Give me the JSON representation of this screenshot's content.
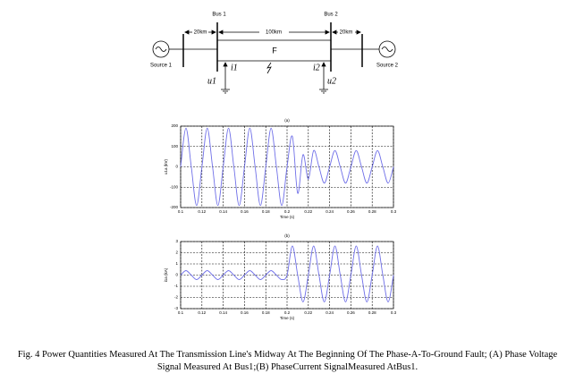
{
  "diagram": {
    "bus1": "Bus 1",
    "bus2": "Bus 2",
    "left_distance": "20km",
    "line_distance": "100km",
    "right_distance": "20km",
    "fault": "F",
    "source1": "Source 1",
    "source2": "Source 2",
    "i1": "i1",
    "i2": "i2",
    "u1": "u1",
    "u2": "u2"
  },
  "chart_data": [
    {
      "type": "line",
      "title": "(a)",
      "x_label": "Time (s)",
      "y_label": "u1a (kV)",
      "x": [
        0.1,
        0.105,
        0.11,
        0.115,
        0.12,
        0.125,
        0.13,
        0.135,
        0.14,
        0.145,
        0.15,
        0.155,
        0.16,
        0.165,
        0.17,
        0.175,
        0.18,
        0.185,
        0.19,
        0.195,
        0.2,
        0.205,
        0.21,
        0.215,
        0.22,
        0.225,
        0.23,
        0.235,
        0.24,
        0.245,
        0.25,
        0.255,
        0.26,
        0.265,
        0.27,
        0.275,
        0.28,
        0.285,
        0.29,
        0.295,
        0.3
      ],
      "series": [
        {
          "color": "#6f6fe8",
          "values": [
            0,
            190,
            0,
            -190,
            0,
            190,
            0,
            -190,
            0,
            190,
            0,
            -190,
            0,
            190,
            0,
            -190,
            0,
            190,
            0,
            -190,
            0,
            150,
            -130,
            60,
            -60,
            80,
            0,
            -80,
            0,
            80,
            0,
            -80,
            0,
            80,
            0,
            -80,
            0,
            80,
            0,
            -80,
            0
          ]
        }
      ],
      "xlim": [
        0.1,
        0.3
      ],
      "xticks": [
        0.1,
        0.12,
        0.14,
        0.16,
        0.18,
        0.2,
        0.22,
        0.24,
        0.26,
        0.28,
        0.3
      ],
      "ylim": [
        -200,
        200
      ],
      "yticks": [
        -200,
        -100,
        0,
        100,
        200
      ],
      "grid": true
    },
    {
      "type": "line",
      "title": "(b)",
      "x_label": "Time (s)",
      "y_label": "i1a (kA)",
      "x": [
        0.1,
        0.105,
        0.11,
        0.115,
        0.12,
        0.125,
        0.13,
        0.135,
        0.14,
        0.145,
        0.15,
        0.155,
        0.16,
        0.165,
        0.17,
        0.175,
        0.18,
        0.185,
        0.19,
        0.195,
        0.2,
        0.205,
        0.21,
        0.215,
        0.22,
        0.225,
        0.23,
        0.235,
        0.24,
        0.245,
        0.25,
        0.255,
        0.26,
        0.265,
        0.27,
        0.275,
        0.28,
        0.285,
        0.29,
        0.295,
        0.3
      ],
      "series": [
        {
          "color": "#6f6fe8",
          "values": [
            0,
            0.4,
            0,
            -0.4,
            0,
            0.4,
            0,
            -0.4,
            0,
            0.4,
            0,
            -0.4,
            0,
            0.4,
            0,
            -0.4,
            0,
            0.4,
            0,
            -0.4,
            0,
            2.6,
            0,
            -2.4,
            0,
            2.6,
            0,
            -2.4,
            0,
            2.6,
            0,
            -2.4,
            0,
            2.6,
            0,
            -2.4,
            0,
            2.6,
            0,
            -2.4,
            0
          ]
        }
      ],
      "xlim": [
        0.1,
        0.3
      ],
      "xticks": [
        0.1,
        0.12,
        0.14,
        0.16,
        0.18,
        0.2,
        0.22,
        0.24,
        0.26,
        0.28,
        0.3
      ],
      "ylim": [
        -3,
        3
      ],
      "yticks": [
        -3,
        -2,
        -1,
        0,
        1,
        2,
        3
      ],
      "grid": true
    }
  ],
  "caption": "Fig. 4 Power Quantities Measured At The Transmission Line's Midway At The Beginning Of The Phase-A-To-Ground Fault; (A) Phase Voltage Signal Measured At Bus1;(B) PhaseCurrent SignalMeasured AtBus1."
}
